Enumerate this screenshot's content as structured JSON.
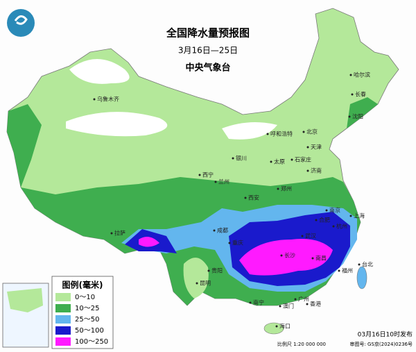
{
  "header": {
    "title": "全国降水量预报图",
    "period": "3月16日—25日",
    "issuer": "中央气象台"
  },
  "legend": {
    "title": "图例(毫米)",
    "items": [
      {
        "label": "0～10",
        "color": "#b4e89a"
      },
      {
        "label": "10～25",
        "color": "#3fae4f"
      },
      {
        "label": "25～50",
        "color": "#63b6ee"
      },
      {
        "label": "50～100",
        "color": "#1a1acc"
      },
      {
        "label": "100～250",
        "color": "#ff1aff"
      }
    ]
  },
  "cities": [
    "乌鲁木齐",
    "哈尔滨",
    "长春",
    "沈阳",
    "北京",
    "天津",
    "呼和浩特",
    "银川",
    "太原",
    "石家庄",
    "济南",
    "西宁",
    "兰州",
    "郑州",
    "西安",
    "南京",
    "合肥",
    "上海",
    "杭州",
    "武汉",
    "成都",
    "重庆",
    "长沙",
    "南昌",
    "福州",
    "拉萨",
    "贵阳",
    "昆明",
    "南宁",
    "广州",
    "澳门",
    "香港",
    "台北",
    "海口"
  ],
  "footer": {
    "issued": "03月16日10时发布",
    "scale": "比例尺 1:20 000 000",
    "approval": "审图号: GS京(2024)0236号"
  }
}
